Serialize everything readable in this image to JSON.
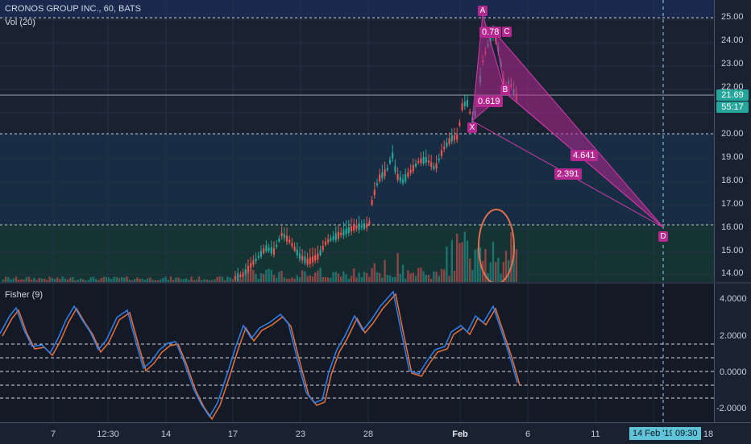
{
  "header": {
    "symbol_title": "CRONOS GROUP INC., 60, BATS",
    "volume_label": "Vol (20)"
  },
  "fisher": {
    "label": "Fisher (9)"
  },
  "price_axis": {
    "ticks": [
      "25.00",
      "24.00",
      "23.00",
      "22.00",
      "21.00",
      "20.00",
      "19.00",
      "18.00",
      "17.00",
      "16.00",
      "15.00",
      "14.00"
    ],
    "last_price": "21.69",
    "countdown": "55:17"
  },
  "fisher_axis": {
    "ticks": [
      "4.0000",
      "2.0000",
      "0.0000",
      "-2.0000"
    ]
  },
  "time_axis": {
    "labels": [
      "7",
      "12:30",
      "14",
      "17",
      "23",
      "28",
      "Feb",
      "6",
      "11",
      "14 Feb '19",
      "09:30",
      "18"
    ],
    "crosshair_date": "14 Feb '19",
    "crosshair_time": "09:30"
  },
  "pattern": {
    "points": {
      "x": "X",
      "a": "A",
      "b": "B",
      "c": "C",
      "d": "D"
    },
    "ratios": {
      "xb": "0.619",
      "ac": "0.78",
      "bd": "4.641",
      "xd": "2.391"
    },
    "fill_color": "#b5288f"
  },
  "colors": {
    "up": "#26a69a",
    "down": "#ef5350",
    "fisher_main": "#2f80ed",
    "fisher_signal": "#e8703a",
    "annotation_ellipse": "#e07050"
  }
}
